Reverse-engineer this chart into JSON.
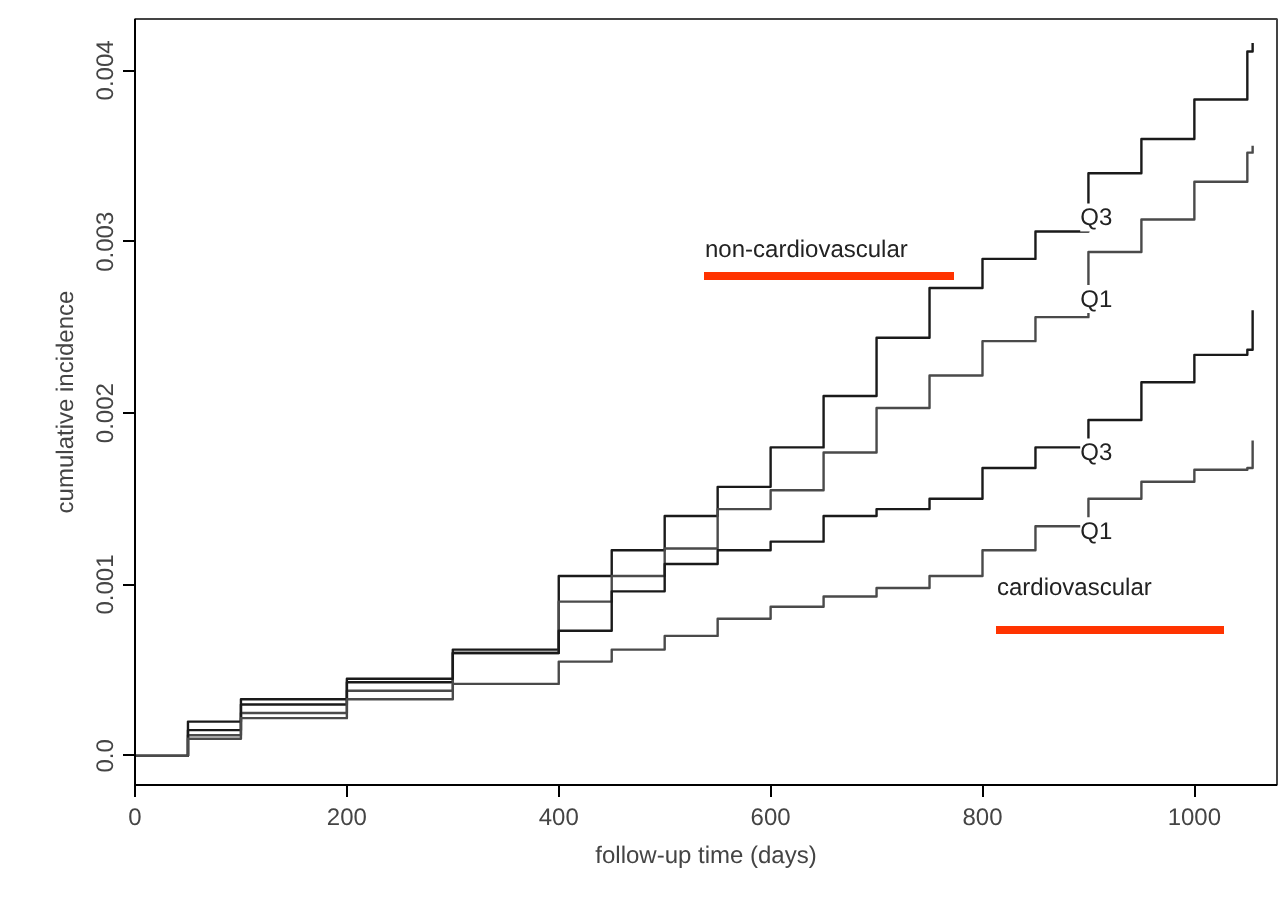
{
  "chart_data": {
    "type": "step",
    "xlabel": "follow-up time (days)",
    "ylabel": "cumulative incidence",
    "x": [
      0,
      50,
      100,
      200,
      300,
      400,
      450,
      500,
      550,
      600,
      650,
      700,
      750,
      800,
      850,
      900,
      950,
      1000,
      1050,
      1055
    ],
    "series": [
      {
        "name": "Q3",
        "color": "#1a1a1a",
        "values": [
          0,
          0.00015,
          0.0003,
          0.00043,
          0.00062,
          0.00105,
          0.0012,
          0.0014,
          0.00157,
          0.0018,
          0.0021,
          0.00244,
          0.00273,
          0.0029,
          0.00306,
          0.0034,
          0.0036,
          0.00383,
          0.00411,
          0.00416
        ]
      },
      {
        "name": "Q1",
        "color": "#4a4a4a",
        "values": [
          0,
          0.00012,
          0.00025,
          0.00038,
          0.0006,
          0.0009,
          0.00105,
          0.00121,
          0.00144,
          0.00155,
          0.00177,
          0.00203,
          0.00222,
          0.00242,
          0.00256,
          0.00294,
          0.00313,
          0.00335,
          0.00352,
          0.00356
        ]
      },
      {
        "name": "Q3",
        "color": "#1a1a1a",
        "values": [
          0,
          0.0002,
          0.00033,
          0.00045,
          0.0006,
          0.00073,
          0.00096,
          0.00112,
          0.0012,
          0.00125,
          0.0014,
          0.00144,
          0.0015,
          0.00168,
          0.0018,
          0.00196,
          0.00218,
          0.00234,
          0.00237,
          0.0026
        ]
      },
      {
        "name": "Q1",
        "color": "#4a4a4a",
        "values": [
          0,
          0.0001,
          0.00022,
          0.00033,
          0.00042,
          0.00055,
          0.00062,
          0.0007,
          0.0008,
          0.00087,
          0.00093,
          0.00098,
          0.00105,
          0.0012,
          0.00134,
          0.0015,
          0.0016,
          0.00167,
          0.00168,
          0.00184
        ]
      }
    ],
    "annotations": [
      "non-cardiovascular",
      "cardiovascular"
    ],
    "xlim": [
      0,
      1078
    ],
    "ylim": [
      -0.00017,
      0.0043
    ],
    "xticks": [
      0,
      200,
      400,
      600,
      800,
      1000
    ],
    "yticks": [
      {
        "value": 0,
        "label": "0.0"
      },
      0.001,
      0.002,
      0.003,
      0.004
    ],
    "grid": false
  }
}
